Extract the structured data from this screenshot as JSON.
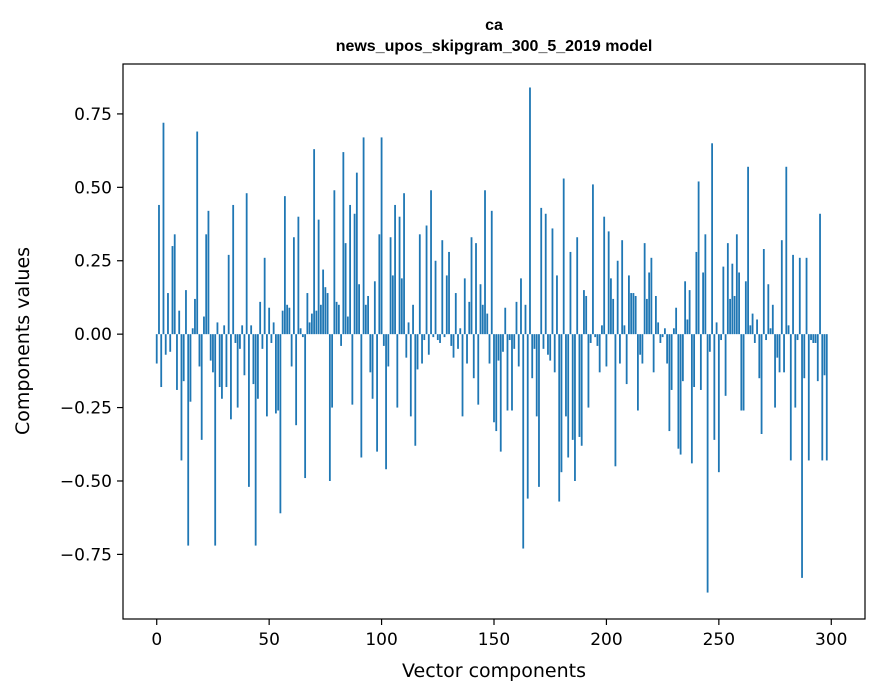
{
  "chart_data": {
    "type": "bar",
    "title": "ca",
    "subtitle": "news_upos_skipgram_300_5_2019 model",
    "xlabel": "Vector components",
    "ylabel": "Components values",
    "xlim": [
      -15,
      315
    ],
    "ylim": [
      -0.97,
      0.92
    ],
    "xticks": [
      0,
      50,
      100,
      150,
      200,
      250,
      300
    ],
    "xtick_labels": [
      "0",
      "50",
      "100",
      "150",
      "200",
      "250",
      "300"
    ],
    "yticks": [
      -0.75,
      -0.5,
      -0.25,
      0.0,
      0.25,
      0.5,
      0.75
    ],
    "ytick_labels": [
      "−0.75",
      "−0.50",
      "−0.25",
      "0.00",
      "0.25",
      "0.50",
      "0.75"
    ],
    "grid": false,
    "bar_color": "#1f77b4",
    "series": [
      {
        "x_start": 0,
        "values": [
          -0.1,
          0.44,
          -0.18,
          0.72,
          -0.07,
          0.14,
          -0.06,
          0.3,
          0.34,
          -0.19,
          0.08,
          -0.43,
          -0.16,
          0.15,
          -0.72,
          -0.23,
          0.02,
          0.12,
          0.69,
          -0.11,
          -0.36,
          0.06,
          0.34,
          0.42,
          -0.09,
          -0.13,
          -0.72,
          0.04,
          -0.18,
          -0.22,
          0.03,
          -0.18,
          0.27,
          -0.29,
          0.44,
          -0.03,
          -0.25,
          -0.05,
          0.03,
          -0.14,
          0.48,
          -0.52,
          0.03,
          -0.17,
          -0.72,
          -0.22,
          0.11,
          -0.05,
          0.26,
          -0.28,
          0.09,
          -0.03,
          0.04,
          -0.27,
          -0.26,
          -0.61,
          0.08,
          0.47,
          0.1,
          0.09,
          -0.11,
          0.33,
          -0.31,
          0.4,
          0.02,
          -0.01,
          -0.49,
          0.14,
          0.04,
          0.07,
          0.63,
          0.08,
          0.39,
          0.1,
          0.22,
          0.16,
          0.14,
          -0.5,
          -0.25,
          0.49,
          0.11,
          0.1,
          -0.04,
          0.62,
          0.31,
          0.06,
          0.44,
          -0.24,
          0.41,
          0.55,
          0.17,
          -0.42,
          0.67,
          0.1,
          0.13,
          -0.13,
          -0.22,
          0.18,
          -0.4,
          0.34,
          0.67,
          -0.04,
          -0.46,
          -0.11,
          0.33,
          0.2,
          0.44,
          -0.25,
          0.4,
          0.19,
          0.48,
          -0.08,
          0.04,
          -0.28,
          0.1,
          -0.38,
          -0.12,
          0.34,
          -0.1,
          -0.02,
          0.37,
          -0.07,
          0.49,
          -0.01,
          0.25,
          -0.02,
          -0.03,
          0.32,
          -0.01,
          0.2,
          0.28,
          -0.04,
          -0.08,
          0.14,
          -0.05,
          0.02,
          -0.28,
          0.19,
          -0.1,
          0.11,
          0.33,
          -0.15,
          0.31,
          -0.24,
          0.17,
          0.1,
          0.49,
          0.07,
          -0.1,
          0.42,
          -0.3,
          -0.33,
          -0.09,
          -0.4,
          -0.06,
          0.09,
          -0.26,
          -0.02,
          -0.26,
          -0.05,
          0.11,
          -0.11,
          0.19,
          -0.73,
          0.1,
          -0.56,
          0.84,
          -0.15,
          -0.05,
          -0.28,
          -0.52,
          0.43,
          -0.05,
          0.41,
          -0.07,
          -0.09,
          0.36,
          -0.13,
          0.2,
          -0.57,
          -0.47,
          0.53,
          -0.28,
          -0.42,
          0.28,
          -0.36,
          -0.5,
          0.33,
          -0.35,
          -0.38,
          0.15,
          0.13,
          -0.25,
          -0.03,
          0.51,
          -0.01,
          -0.04,
          -0.13,
          0.03,
          0.4,
          -0.11,
          0.35,
          0.19,
          0.12,
          -0.45,
          0.25,
          -0.1,
          0.32,
          0.03,
          -0.17,
          0.2,
          0.14,
          0.14,
          0.13,
          -0.26,
          -0.07,
          -0.1,
          0.31,
          0.12,
          0.21,
          0.26,
          -0.13,
          0.13,
          0.04,
          -0.03,
          -0.01,
          0.02,
          -0.1,
          -0.33,
          -0.19,
          0.02,
          0.09,
          -0.39,
          -0.41,
          -0.16,
          0.18,
          0.05,
          0.15,
          -0.44,
          -0.18,
          0.28,
          0.52,
          -0.19,
          0.21,
          0.34,
          -0.88,
          -0.06,
          0.65,
          -0.36,
          0.04,
          -0.47,
          -0.02,
          0.23,
          -0.21,
          0.31,
          0.12,
          0.24,
          0.13,
          0.34,
          0.21,
          -0.26,
          -0.26,
          0.18,
          0.57,
          0.03,
          0.07,
          -0.03,
          0.05,
          -0.15,
          -0.34,
          0.29,
          -0.02,
          0.17,
          0.02,
          0.1,
          -0.25,
          -0.08,
          -0.13,
          0.32,
          -0.13,
          0.57,
          0.03,
          -0.43,
          0.27,
          -0.25,
          -0.02,
          0.26,
          -0.83,
          -0.15,
          0.26,
          -0.43,
          -0.02,
          -0.03,
          -0.03,
          -0.16,
          0.41,
          -0.43,
          -0.14,
          -0.43
        ]
      }
    ]
  }
}
